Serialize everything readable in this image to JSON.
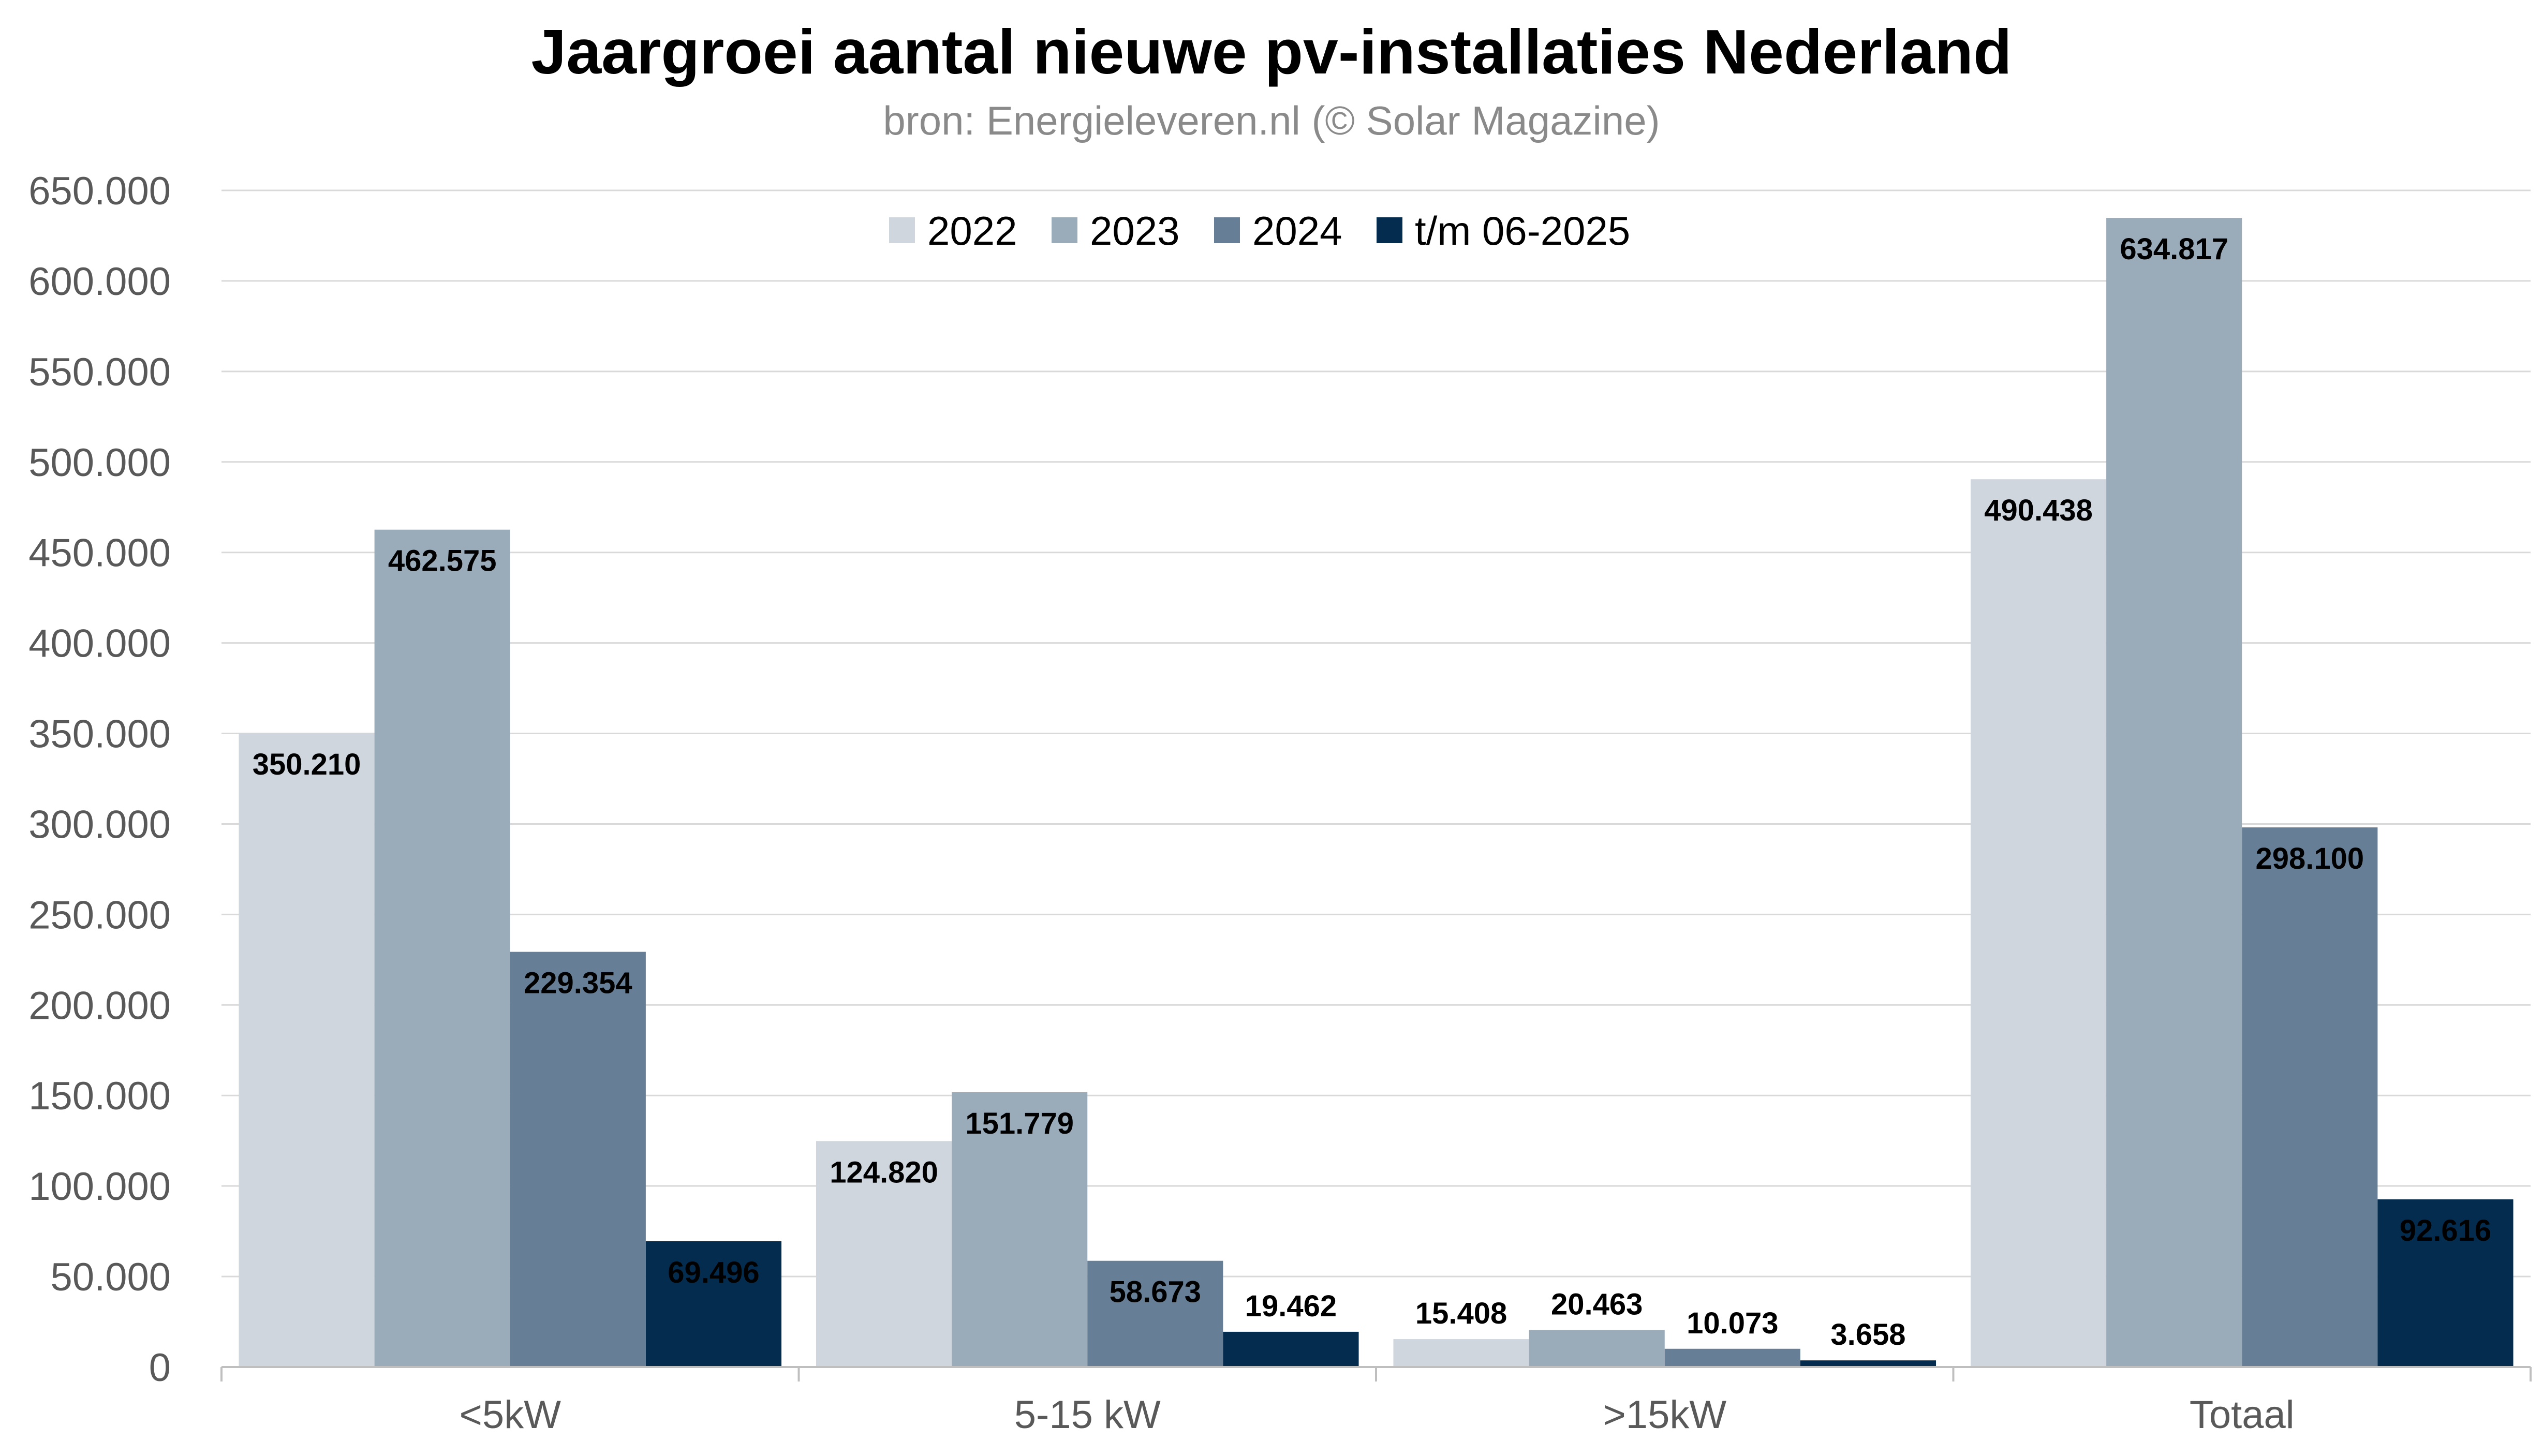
{
  "title": "Jaargroei aantal nieuwe pv-installaties Nederland",
  "subtitle": "bron: Energieleveren.nl (© Solar Magazine)",
  "chart_data": {
    "type": "bar",
    "categories": [
      "<5kW",
      "5-15 kW",
      ">15kW",
      "Totaal"
    ],
    "series": [
      {
        "name": "2022",
        "color": "#cfd6de",
        "values": [
          350210,
          124820,
          15408,
          490438
        ],
        "labels": [
          "350.210",
          "124.820",
          "15.408",
          "490.438"
        ]
      },
      {
        "name": "2023",
        "color": "#9aabba",
        "values": [
          462575,
          151779,
          20463,
          634817
        ],
        "labels": [
          "462.575",
          "151.779",
          "20.463",
          "634.817"
        ]
      },
      {
        "name": "2024",
        "color": "#677f96",
        "values": [
          229354,
          58673,
          10073,
          298100
        ],
        "labels": [
          "229.354",
          "58.673",
          "10.073",
          "298.100"
        ]
      },
      {
        "name": "t/m 06-2025",
        "color": "#042c4f",
        "values": [
          69496,
          19462,
          3658,
          92616
        ],
        "labels": [
          "69.496",
          "19.462",
          "3.658",
          "92.616"
        ]
      }
    ],
    "ylim": [
      0,
      650000
    ],
    "yticks": [
      0,
      50000,
      100000,
      150000,
      200000,
      250000,
      300000,
      350000,
      400000,
      450000,
      500000,
      550000,
      600000,
      650000
    ],
    "ytick_labels": [
      "0",
      "50.000",
      "100.000",
      "150.000",
      "200.000",
      "250.000",
      "300.000",
      "350.000",
      "400.000",
      "450.000",
      "500.000",
      "550.000",
      "600.000",
      "650.000"
    ],
    "grid": true,
    "legend": "top-center",
    "xlabel": "",
    "ylabel": ""
  }
}
